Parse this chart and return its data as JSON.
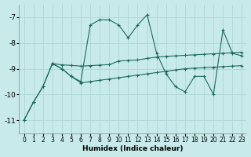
{
  "xlabel": "Humidex (Indice chaleur)",
  "ylabel": "",
  "bg_color": "#c8eaea",
  "grid_color": "#b2d8d8",
  "line_color": "#1a6b5a",
  "xlim": [
    -0.5,
    23.5
  ],
  "ylim": [
    -11.5,
    -6.5
  ],
  "yticks": [
    -11,
    -10,
    -9,
    -8,
    -7
  ],
  "xticks": [
    0,
    1,
    2,
    3,
    4,
    5,
    6,
    7,
    8,
    9,
    10,
    11,
    12,
    13,
    14,
    15,
    16,
    17,
    18,
    19,
    20,
    21,
    22,
    23
  ],
  "line1_x": [
    0,
    1,
    2,
    3,
    4,
    5,
    6,
    7,
    8,
    9,
    10,
    11,
    12,
    13,
    14,
    15,
    16,
    17,
    18,
    19,
    20,
    21,
    22,
    23
  ],
  "line1_y": [
    -11.0,
    -10.3,
    -9.7,
    -8.8,
    -9.0,
    -9.3,
    -9.5,
    -7.3,
    -7.1,
    -7.1,
    -7.3,
    -7.8,
    -7.3,
    -6.9,
    -8.4,
    -9.2,
    -9.7,
    -9.9,
    -9.3,
    -9.3,
    -10.0,
    -7.5,
    -8.4,
    -8.5
  ],
  "line2_x": [
    0,
    1,
    2,
    3,
    4,
    5,
    6,
    7,
    8,
    9,
    10,
    11,
    12,
    13,
    14,
    15,
    16,
    17,
    18,
    19,
    20,
    21,
    22,
    23
  ],
  "line2_y": [
    -11.0,
    -10.3,
    -9.7,
    -8.8,
    -9.0,
    -9.3,
    -9.55,
    -9.5,
    -9.45,
    -9.4,
    -9.35,
    -9.3,
    -9.25,
    -9.2,
    -9.15,
    -9.1,
    -9.05,
    -9.0,
    -8.98,
    -8.96,
    -8.94,
    -8.92,
    -8.9,
    -8.88
  ],
  "line3_x": [
    3,
    4,
    5,
    6,
    7,
    8,
    9,
    10,
    11,
    12,
    13,
    14,
    15,
    16,
    17,
    18,
    19,
    20,
    21,
    22,
    23
  ],
  "line3_y": [
    -8.8,
    -8.85,
    -8.87,
    -8.9,
    -8.88,
    -8.86,
    -8.84,
    -8.7,
    -8.68,
    -8.66,
    -8.6,
    -8.55,
    -8.52,
    -8.5,
    -8.48,
    -8.46,
    -8.44,
    -8.42,
    -8.4,
    -8.38,
    -8.36
  ]
}
